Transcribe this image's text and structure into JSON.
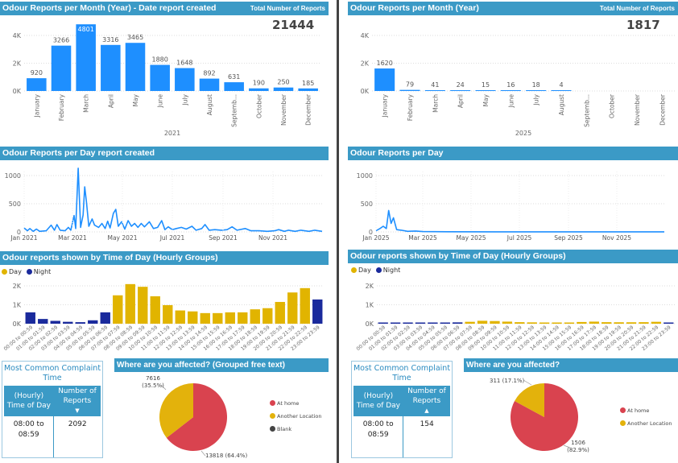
{
  "colors": {
    "header": "#3b9ac6",
    "bar": "#1e8fff",
    "day": "#e1b400",
    "night": "#1a2a9c",
    "at_home": "#d9434f",
    "another": "#e3b20c",
    "blank": "#444444"
  },
  "left": {
    "month_title": "Odour Reports per Month (Year) - Date report created",
    "total_label": "Total Number of Reports",
    "total": "21444",
    "day_title": "Odour Reports per Day report created",
    "hour_title": "Odour reports shown by Time of Day (Hourly Groups)",
    "legend": {
      "day": "Day",
      "night": "Night"
    },
    "card": {
      "title": "Most Common Complaint Time",
      "col1": "(Hourly) Time of Day",
      "col2": "Number of Reports",
      "time": "08:00 to 08:59",
      "count": "2092",
      "sort": "▼"
    },
    "pie_title": "Where are you affected? (Grouped free text)",
    "pie_legend": [
      "At home",
      "Another Location",
      "Blank"
    ]
  },
  "right": {
    "month_title": "Odour Reports per Month (Year)",
    "total_label": "Total Number of Reports",
    "total": "1817",
    "day_title": "Odour Reports per Day",
    "hour_title": "Odour reports shown by Time of Day (Hourly Groups)",
    "legend": {
      "day": "Day",
      "night": "Night"
    },
    "card": {
      "title": "Most Common Complaint Time",
      "col1": "(Hourly) Time of Day",
      "col2": "Number of Reports",
      "time": "08:00 to 08:59",
      "count": "154",
      "sort": "▲"
    },
    "pie_title": "Where are you affected?",
    "pie_legend": [
      "At home",
      "Another Location"
    ]
  },
  "chart_data": [
    {
      "id": "left-month",
      "type": "bar",
      "xlabel": "2021",
      "categories": [
        "January",
        "February",
        "March",
        "April",
        "May",
        "June",
        "July",
        "August",
        "Septemb...",
        "October",
        "November",
        "December"
      ],
      "values": [
        920,
        3266,
        4801,
        3316,
        3465,
        1880,
        1648,
        892,
        631,
        190,
        250,
        185
      ],
      "yticks": [
        "0K",
        "2K",
        "4K"
      ],
      "ylim": [
        0,
        4000
      ],
      "grid": true
    },
    {
      "id": "right-month",
      "type": "bar",
      "xlabel": "2025",
      "categories": [
        "January",
        "February",
        "March",
        "April",
        "May",
        "June",
        "July",
        "August",
        "Septemb...",
        "October",
        "November",
        "December"
      ],
      "values": [
        1620,
        79,
        41,
        24,
        15,
        16,
        18,
        4,
        null,
        null,
        null,
        null
      ],
      "yticks": [
        "0K",
        "2K",
        "4K"
      ],
      "ylim": [
        0,
        4000
      ],
      "grid": true
    },
    {
      "id": "left-day",
      "type": "line",
      "xticks": [
        "Jan 2021",
        "Mar 2021",
        "May 2021",
        "Jul 2021",
        "Sep 2021",
        "Nov 2021"
      ],
      "yticks": [
        "0",
        "500",
        "1000"
      ],
      "ylim": [
        0,
        1000
      ],
      "xrange": [
        "2021-01-01",
        "2021-12-31"
      ],
      "points": [
        [
          "2021-01-01",
          70
        ],
        [
          "2021-01-05",
          20
        ],
        [
          "2021-01-08",
          60
        ],
        [
          "2021-01-12",
          10
        ],
        [
          "2021-01-16",
          50
        ],
        [
          "2021-01-20",
          10
        ],
        [
          "2021-01-28",
          20
        ],
        [
          "2021-02-03",
          120
        ],
        [
          "2021-02-07",
          30
        ],
        [
          "2021-02-10",
          130
        ],
        [
          "2021-02-14",
          30
        ],
        [
          "2021-02-20",
          20
        ],
        [
          "2021-02-24",
          80
        ],
        [
          "2021-02-27",
          30
        ],
        [
          "2021-03-03",
          290
        ],
        [
          "2021-03-05",
          60
        ],
        [
          "2021-03-08",
          1130
        ],
        [
          "2021-03-11",
          80
        ],
        [
          "2021-03-14",
          300
        ],
        [
          "2021-03-16",
          800
        ],
        [
          "2021-03-18",
          540
        ],
        [
          "2021-03-21",
          100
        ],
        [
          "2021-03-25",
          230
        ],
        [
          "2021-03-28",
          120
        ],
        [
          "2021-04-02",
          80
        ],
        [
          "2021-04-06",
          150
        ],
        [
          "2021-04-10",
          60
        ],
        [
          "2021-04-13",
          190
        ],
        [
          "2021-04-16",
          70
        ],
        [
          "2021-04-20",
          330
        ],
        [
          "2021-04-23",
          400
        ],
        [
          "2021-04-26",
          100
        ],
        [
          "2021-04-30",
          180
        ],
        [
          "2021-05-04",
          50
        ],
        [
          "2021-05-08",
          200
        ],
        [
          "2021-05-12",
          100
        ],
        [
          "2021-05-16",
          150
        ],
        [
          "2021-05-20",
          80
        ],
        [
          "2021-05-24",
          150
        ],
        [
          "2021-05-28",
          90
        ],
        [
          "2021-06-03",
          180
        ],
        [
          "2021-06-08",
          60
        ],
        [
          "2021-06-13",
          80
        ],
        [
          "2021-06-18",
          200
        ],
        [
          "2021-06-22",
          40
        ],
        [
          "2021-06-26",
          90
        ],
        [
          "2021-07-01",
          40
        ],
        [
          "2021-07-06",
          60
        ],
        [
          "2021-07-12",
          80
        ],
        [
          "2021-07-18",
          50
        ],
        [
          "2021-07-25",
          100
        ],
        [
          "2021-07-30",
          30
        ],
        [
          "2021-08-06",
          60
        ],
        [
          "2021-08-10",
          130
        ],
        [
          "2021-08-15",
          30
        ],
        [
          "2021-08-22",
          40
        ],
        [
          "2021-08-30",
          30
        ],
        [
          "2021-09-06",
          40
        ],
        [
          "2021-09-12",
          90
        ],
        [
          "2021-09-18",
          30
        ],
        [
          "2021-09-28",
          60
        ],
        [
          "2021-10-05",
          20
        ],
        [
          "2021-10-15",
          20
        ],
        [
          "2021-10-25",
          10
        ],
        [
          "2021-11-03",
          20
        ],
        [
          "2021-11-08",
          40
        ],
        [
          "2021-11-15",
          10
        ],
        [
          "2021-11-20",
          30
        ],
        [
          "2021-11-28",
          10
        ],
        [
          "2021-12-05",
          30
        ],
        [
          "2021-12-15",
          10
        ],
        [
          "2021-12-22",
          30
        ],
        [
          "2021-12-31",
          10
        ]
      ]
    },
    {
      "id": "right-day",
      "type": "line",
      "xticks": [
        "Jan 2025",
        "Mar 2025",
        "May 2025",
        "Jul 2025",
        "Sep 2025",
        "Nov 2025"
      ],
      "yticks": [
        "0",
        "500",
        "1000"
      ],
      "ylim": [
        0,
        1000
      ],
      "xrange": [
        "2025-01-01",
        "2025-12-31"
      ],
      "points": [
        [
          "2025-01-01",
          20
        ],
        [
          "2025-01-06",
          60
        ],
        [
          "2025-01-10",
          100
        ],
        [
          "2025-01-14",
          60
        ],
        [
          "2025-01-17",
          380
        ],
        [
          "2025-01-20",
          150
        ],
        [
          "2025-01-23",
          250
        ],
        [
          "2025-01-27",
          40
        ],
        [
          "2025-02-02",
          30
        ],
        [
          "2025-02-10",
          10
        ],
        [
          "2025-02-20",
          15
        ],
        [
          "2025-03-01",
          5
        ],
        [
          "2025-04-01",
          3
        ],
        [
          "2025-06-01",
          2
        ],
        [
          "2025-08-01",
          2
        ],
        [
          "2025-10-01",
          1
        ],
        [
          "2025-12-31",
          1
        ]
      ]
    },
    {
      "id": "left-hour",
      "type": "bar",
      "legend": "top-left",
      "yticks": [
        "0K",
        "1K",
        "2K"
      ],
      "ylim": [
        0,
        2000
      ],
      "categories": [
        "00:00 to 00:59",
        "01:00 to 01:59",
        "02:00 to 02:59",
        "03:00 to 03:59",
        "04:00 to 04:59",
        "05:00 to 05:59",
        "06:00 to 06:59",
        "07:00 to 07:59",
        "08:00 to 08:59",
        "09:00 to 09:59",
        "10:00 to 10:59",
        "11:00 to 11:59",
        "12:00 to 12:59",
        "13:00 to 13:59",
        "14:00 to 14:59",
        "15:00 to 15:59",
        "16:00 to 16:59",
        "17:00 to 17:59",
        "18:00 to 18:59",
        "19:00 to 19:59",
        "20:00 to 20:59",
        "21:00 to 21:59",
        "22:00 to 22:59",
        "23:00 to 23:59"
      ],
      "series": [
        {
          "name": "Day/Night",
          "values": [
            600,
            250,
            150,
            100,
            80,
            180,
            600,
            1500,
            2092,
            1950,
            1450,
            980,
            700,
            650,
            560,
            560,
            600,
            600,
            760,
            820,
            1150,
            1650,
            1880,
            1280
          ]
        }
      ],
      "group": [
        "Night",
        "Night",
        "Night",
        "Night",
        "Night",
        "Night",
        "Night",
        "Day",
        "Day",
        "Day",
        "Day",
        "Day",
        "Day",
        "Day",
        "Day",
        "Day",
        "Day",
        "Day",
        "Day",
        "Day",
        "Day",
        "Day",
        "Day",
        "Night"
      ]
    },
    {
      "id": "right-hour",
      "type": "bar",
      "legend": "top-left",
      "yticks": [
        "0K",
        "1K",
        "2K"
      ],
      "ylim": [
        0,
        2000
      ],
      "categories": [
        "00:00 to 00:59",
        "01:00 to 01:59",
        "02:00 to 02:59",
        "03:00 to 03:59",
        "04:00 to 04:59",
        "05:00 to 05:59",
        "06:00 to 06:59",
        "07:00 to 07:59",
        "08:00 to 08:59",
        "09:00 to 09:59",
        "10:00 to 10:59",
        "11:00 to 11:59",
        "12:00 to 12:59",
        "13:00 to 13:59",
        "14:00 to 14:59",
        "15:00 to 15:59",
        "16:00 to 16:59",
        "17:00 to 17:59",
        "18:00 to 18:59",
        "19:00 to 19:59",
        "20:00 to 20:59",
        "21:00 to 21:59",
        "22:00 to 22:59",
        "23:00 to 23:59"
      ],
      "series": [
        {
          "name": "Day/Night",
          "values": [
            40,
            25,
            25,
            25,
            15,
            20,
            70,
            100,
            154,
            140,
            110,
            80,
            70,
            50,
            50,
            55,
            90,
            110,
            80,
            75,
            75,
            80,
            100,
            60
          ]
        }
      ],
      "group": [
        "Night",
        "Night",
        "Night",
        "Night",
        "Night",
        "Night",
        "Night",
        "Day",
        "Day",
        "Day",
        "Day",
        "Day",
        "Day",
        "Day",
        "Day",
        "Day",
        "Day",
        "Day",
        "Day",
        "Day",
        "Day",
        "Day",
        "Day",
        "Night"
      ]
    },
    {
      "id": "left-pie",
      "type": "pie",
      "slices": [
        {
          "name": "At home",
          "value": 13818,
          "label": "13818 (64.4%)"
        },
        {
          "name": "Another Location",
          "value": 7616,
          "label": "7616 (35.5%)"
        }
      ],
      "legend": "right"
    },
    {
      "id": "right-pie",
      "type": "pie",
      "slices": [
        {
          "name": "At home",
          "value": 1506,
          "label": "1506 (82.9%)"
        },
        {
          "name": "Another Location",
          "value": 311,
          "label": "311 (17.1%)"
        }
      ],
      "legend": "right"
    }
  ]
}
